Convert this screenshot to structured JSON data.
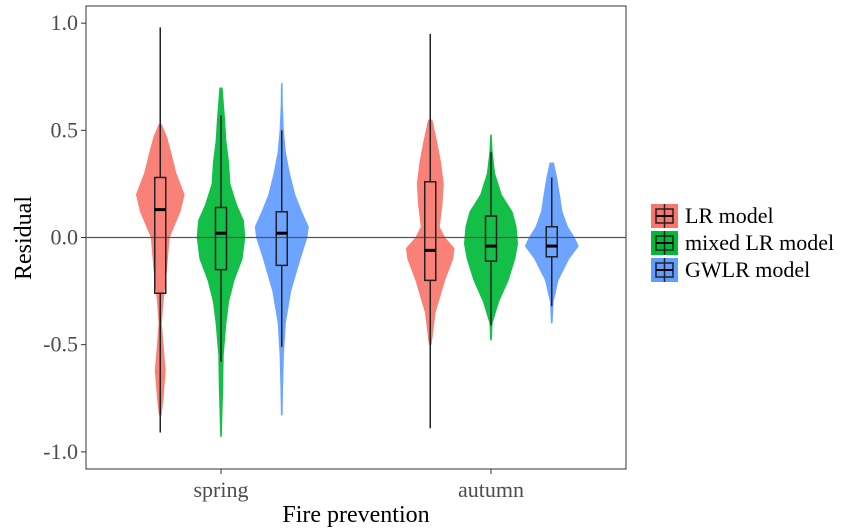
{
  "chart_data": {
    "type": "violin",
    "title": "",
    "xlabel": "Fire prevention",
    "ylabel": "Residual",
    "categories": [
      "spring",
      "autumn"
    ],
    "ylim": [
      -1.08,
      1.08
    ],
    "yticks": [
      -1.0,
      -0.5,
      0.0,
      0.5,
      1.0
    ],
    "ytick_labels": [
      "-1.0",
      "-0.5",
      "0.0",
      "0.5",
      "1.0"
    ],
    "reference_line": 0.0,
    "grid": false,
    "legend_position": "right",
    "series": [
      {
        "name": "LR model",
        "color": "#F8766D",
        "groups": {
          "spring": {
            "box": {
              "q1": -0.26,
              "median": 0.13,
              "q3": 0.28,
              "whisker_low": -0.91,
              "whisker_high": 0.98
            },
            "violin": [
              [
                -0.83,
                0.05
              ],
              [
                -0.75,
                0.12
              ],
              [
                -0.62,
                0.2
              ],
              [
                -0.5,
                0.12
              ],
              [
                -0.4,
                0.06
              ],
              [
                -0.3,
                0.12
              ],
              [
                -0.15,
                0.25
              ],
              [
                0.0,
                0.35
              ],
              [
                0.12,
                0.75
              ],
              [
                0.2,
                0.9
              ],
              [
                0.3,
                0.6
              ],
              [
                0.4,
                0.4
              ],
              [
                0.47,
                0.25
              ],
              [
                0.53,
                0.05
              ]
            ]
          },
          "autumn": {
            "box": {
              "q1": -0.2,
              "median": -0.06,
              "q3": 0.26,
              "whisker_low": -0.89,
              "whisker_high": 0.95
            },
            "violin": [
              [
                -0.5,
                0.05
              ],
              [
                -0.35,
                0.2
              ],
              [
                -0.2,
                0.55
              ],
              [
                -0.1,
                0.85
              ],
              [
                -0.05,
                0.9
              ],
              [
                0.0,
                0.55
              ],
              [
                0.05,
                0.35
              ],
              [
                0.15,
                0.45
              ],
              [
                0.25,
                0.5
              ],
              [
                0.35,
                0.4
              ],
              [
                0.45,
                0.25
              ],
              [
                0.55,
                0.08
              ]
            ]
          }
        }
      },
      {
        "name": "mixed LR model",
        "color": "#00BA38",
        "groups": {
          "spring": {
            "box": {
              "q1": -0.15,
              "median": 0.02,
              "q3": 0.14,
              "whisker_low": -0.58,
              "whisker_high": 0.57
            },
            "violin": [
              [
                -0.93,
                0.03
              ],
              [
                -0.85,
                0.05
              ],
              [
                -0.7,
                0.08
              ],
              [
                -0.55,
                0.1
              ],
              [
                -0.4,
                0.2
              ],
              [
                -0.3,
                0.3
              ],
              [
                -0.2,
                0.5
              ],
              [
                -0.1,
                0.8
              ],
              [
                0.0,
                0.9
              ],
              [
                0.08,
                0.85
              ],
              [
                0.15,
                0.6
              ],
              [
                0.25,
                0.35
              ],
              [
                0.35,
                0.3
              ],
              [
                0.45,
                0.2
              ],
              [
                0.55,
                0.15
              ],
              [
                0.7,
                0.06
              ]
            ]
          },
          "autumn": {
            "box": {
              "q1": -0.11,
              "median": -0.04,
              "q3": 0.1,
              "whisker_low": -0.41,
              "whisker_high": 0.4
            },
            "violin": [
              [
                -0.48,
                0.03
              ],
              [
                -0.4,
                0.06
              ],
              [
                -0.3,
                0.3
              ],
              [
                -0.2,
                0.65
              ],
              [
                -0.1,
                0.9
              ],
              [
                -0.03,
                1.0
              ],
              [
                0.05,
                0.95
              ],
              [
                0.12,
                0.8
              ],
              [
                0.2,
                0.4
              ],
              [
                0.3,
                0.15
              ],
              [
                0.4,
                0.06
              ],
              [
                0.48,
                0.03
              ]
            ]
          }
        }
      },
      {
        "name": "GWLR model",
        "color": "#619CFF",
        "groups": {
          "spring": {
            "box": {
              "q1": -0.13,
              "median": 0.02,
              "q3": 0.12,
              "whisker_low": -0.51,
              "whisker_high": 0.5
            },
            "violin": [
              [
                -0.83,
                0.03
              ],
              [
                -0.7,
                0.05
              ],
              [
                -0.55,
                0.08
              ],
              [
                -0.4,
                0.15
              ],
              [
                -0.25,
                0.35
              ],
              [
                -0.1,
                0.7
              ],
              [
                0.0,
                0.95
              ],
              [
                0.05,
                1.0
              ],
              [
                0.12,
                0.75
              ],
              [
                0.2,
                0.5
              ],
              [
                0.3,
                0.3
              ],
              [
                0.4,
                0.15
              ],
              [
                0.5,
                0.08
              ],
              [
                0.62,
                0.04
              ],
              [
                0.72,
                0.03
              ]
            ]
          },
          "autumn": {
            "box": {
              "q1": -0.09,
              "median": -0.04,
              "q3": 0.05,
              "whisker_low": -0.32,
              "whisker_high": 0.28
            },
            "violin": [
              [
                -0.4,
                0.03
              ],
              [
                -0.3,
                0.07
              ],
              [
                -0.2,
                0.25
              ],
              [
                -0.1,
                0.65
              ],
              [
                -0.04,
                1.0
              ],
              [
                0.0,
                0.85
              ],
              [
                0.05,
                0.6
              ],
              [
                0.12,
                0.4
              ],
              [
                0.2,
                0.3
              ],
              [
                0.28,
                0.2
              ],
              [
                0.35,
                0.08
              ]
            ]
          }
        }
      }
    ]
  }
}
